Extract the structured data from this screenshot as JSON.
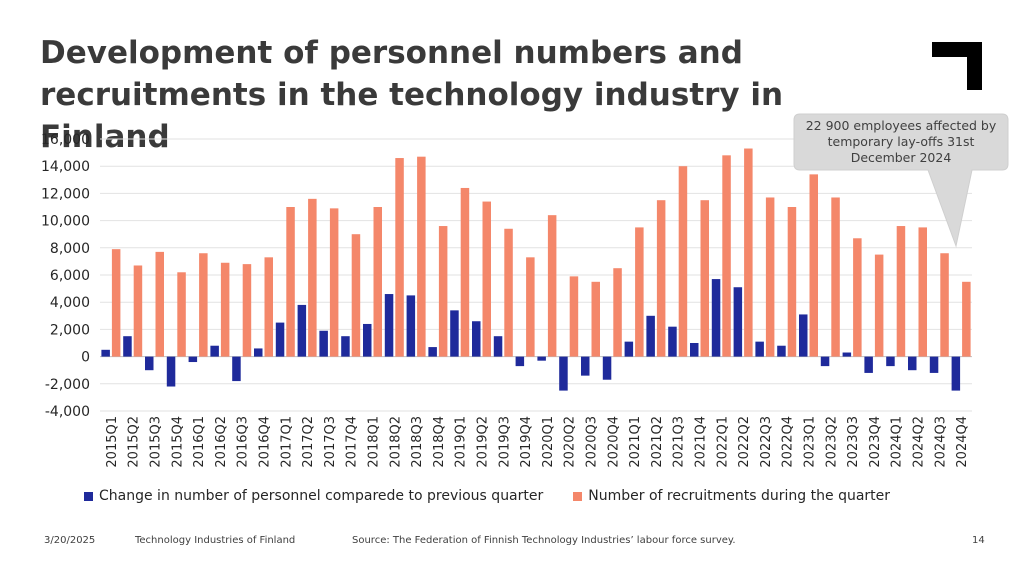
{
  "slide": {
    "title_line1": "Development of personnel numbers and",
    "title_line2": "recruitments in the technology industry in Finland",
    "callout": "22 900 employees affected by temporary lay-offs 31st December 2024",
    "footer_date": "3/20/2025",
    "footer_org": "Technology Industries of Finland",
    "footer_source": "Source: The Federation of Finnish Technology Industries’ labour force survey.",
    "page_number": "14"
  },
  "chart_data": {
    "type": "bar",
    "title": "",
    "xlabel": "",
    "ylabel": "",
    "ylim": [
      -4000,
      16000
    ],
    "yticks": [
      -4000,
      -2000,
      0,
      2000,
      4000,
      6000,
      8000,
      10000,
      12000,
      14000,
      16000
    ],
    "ytick_labels": [
      "-4,000",
      "-2,000",
      "0",
      "2,000",
      "4,000",
      "6,000",
      "8,000",
      "10,000",
      "12,000",
      "14,000",
      "16,000"
    ],
    "grid": true,
    "legend_position": "bottom",
    "categories": [
      "2015Q1",
      "2015Q2",
      "2015Q3",
      "2015Q4",
      "2016Q1",
      "2016Q2",
      "2016Q3",
      "2016Q4",
      "2017Q1",
      "2017Q2",
      "2017Q3",
      "2017Q4",
      "2018Q1",
      "2018Q2",
      "2018Q3",
      "2018Q4",
      "2019Q1",
      "2019Q2",
      "2019Q3",
      "2019Q4",
      "2020Q1",
      "2020Q2",
      "2020Q3",
      "2020Q4",
      "2021Q1",
      "2021Q2",
      "2021Q3",
      "2021Q4",
      "2022Q1",
      "2022Q2",
      "2022Q3",
      "2022Q4",
      "2023Q1",
      "2023Q2",
      "2023Q3",
      "2023Q4",
      "2024Q1",
      "2024Q2",
      "2024Q3",
      "2024Q4"
    ],
    "series": [
      {
        "name": "Change in number of personnel comparede to previous quarter",
        "color": "#1f2a9b",
        "values": [
          500,
          1500,
          -1000,
          -2200,
          -400,
          800,
          -1800,
          600,
          2500,
          3800,
          1900,
          1500,
          2400,
          4600,
          4500,
          700,
          3400,
          2600,
          1500,
          -700,
          -300,
          -2500,
          -1400,
          -1700,
          1100,
          3000,
          2200,
          1000,
          5700,
          5100,
          1100,
          800,
          3100,
          -700,
          300,
          -1200,
          -700,
          -1000,
          -1200,
          -2500
        ]
      },
      {
        "name": "Number of recruitments during the quarter",
        "color": "#f4876a",
        "values": [
          7900,
          6700,
          7700,
          6200,
          7600,
          6900,
          6800,
          7300,
          11000,
          11600,
          10900,
          9000,
          11000,
          14600,
          14700,
          9600,
          12400,
          11400,
          9400,
          7300,
          10400,
          5900,
          5500,
          6500,
          9500,
          11500,
          14000,
          11500,
          14800,
          15300,
          11700,
          11000,
          13400,
          11700,
          8700,
          7500,
          9600,
          9500,
          7600,
          5500
        ]
      }
    ]
  }
}
